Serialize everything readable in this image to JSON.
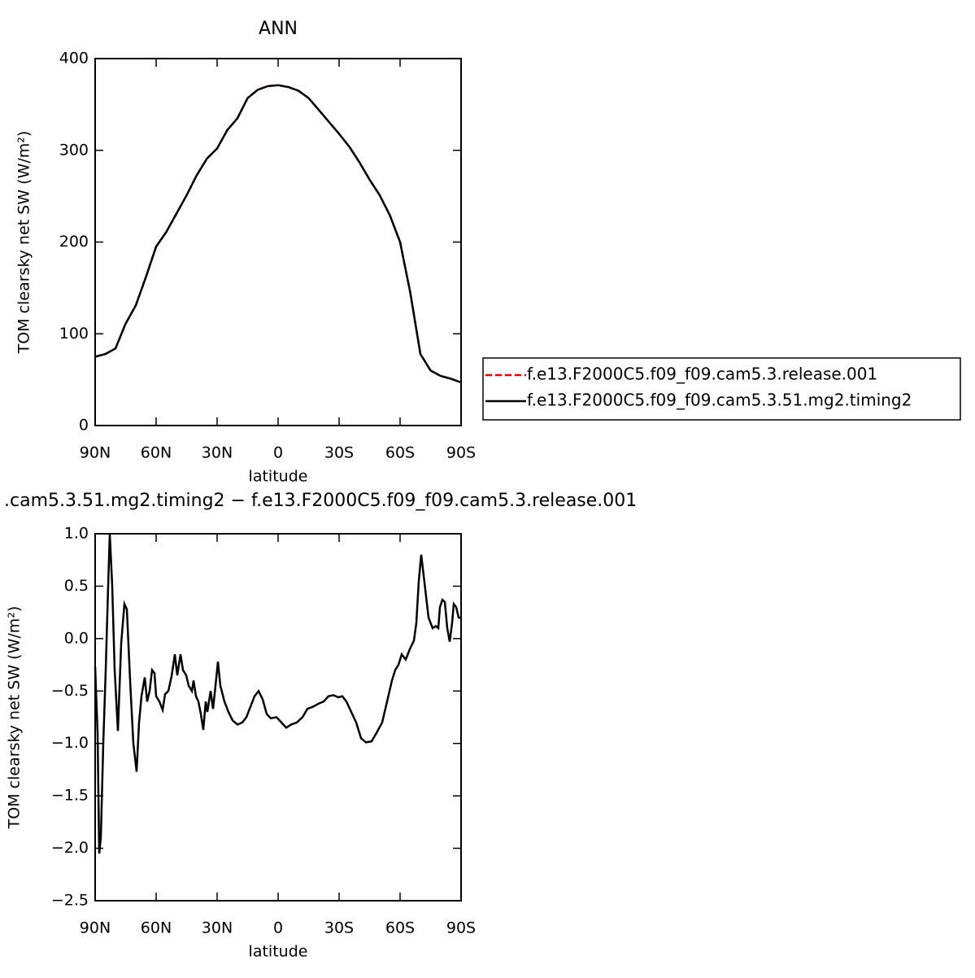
{
  "chart_data": [
    {
      "type": "line",
      "title": "ANN",
      "xlabel": "latitude",
      "ylabel": "TOM clearsky net SW (W/m²)",
      "x": [
        90,
        85,
        80,
        75,
        70,
        65,
        60,
        55,
        50,
        45,
        40,
        35,
        30,
        25,
        20,
        15,
        10,
        5,
        0,
        -5,
        -10,
        -15,
        -20,
        -25,
        -30,
        -35,
        -40,
        -45,
        -50,
        -55,
        -60,
        -65,
        -70,
        -75,
        -80,
        -85,
        -90
      ],
      "series": [
        {
          "name": "f.e13.F2000C5.f09_f09.cam5.3.release.001",
          "color": "#e00000",
          "dashed": true,
          "values": [
            75,
            78,
            84,
            111,
            131,
            162,
            195,
            211,
            231,
            251,
            273,
            291,
            302,
            322,
            335,
            357,
            366,
            370,
            371,
            369,
            365,
            357,
            344,
            331,
            318,
            304,
            287,
            268,
            251,
            229,
            200,
            145,
            78,
            60,
            54,
            51,
            47
          ]
        },
        {
          "name": "f.e13.F2000C5.f09_f09.cam5.3.51.mg2.timing2",
          "color": "#000000",
          "dashed": false,
          "values": [
            75,
            78,
            84,
            111,
            131,
            162,
            195,
            211,
            231,
            251,
            273,
            291,
            302,
            322,
            335,
            357,
            366,
            370,
            371,
            369,
            365,
            357,
            344,
            331,
            318,
            304,
            287,
            268,
            251,
            229,
            200,
            145,
            78,
            60,
            54,
            51,
            47
          ]
        }
      ],
      "xlim": [
        90,
        -90
      ],
      "xticks": [
        {
          "value": 90,
          "label": "90N"
        },
        {
          "value": 60,
          "label": "60N"
        },
        {
          "value": 30,
          "label": "30N"
        },
        0,
        {
          "value": -30,
          "label": "30S"
        },
        {
          "value": -60,
          "label": "60S"
        },
        {
          "value": -90,
          "label": "90S"
        }
      ],
      "ylim": [
        0,
        400
      ],
      "yticks": [
        0,
        100,
        200,
        300,
        400
      ],
      "legend": "right"
    },
    {
      "type": "line",
      "title": ".cam5.3.51.mg2.timing2 − f.e13.F2000C5.f09_f09.cam5.3.release.001",
      "xlabel": "latitude",
      "ylabel": "TOM clearsky net SW (W/m²)",
      "x": [
        90,
        88.8,
        88,
        87.2,
        86,
        84.8,
        83.6,
        82.8,
        81.6,
        80.4,
        78.8,
        77.2,
        75.6,
        74.4,
        72.8,
        71.2,
        69.6,
        68.4,
        67.2,
        65.6,
        64.4,
        63.2,
        62,
        60.8,
        60,
        58.4,
        56.8,
        55.6,
        54,
        52.4,
        50.8,
        49.6,
        48,
        46.8,
        45.2,
        44,
        42.4,
        41.6,
        40.4,
        39.2,
        38,
        36.8,
        35.6,
        34.8,
        33.2,
        32,
        30.8,
        29.6,
        28.4,
        26.4,
        24.4,
        22.4,
        20,
        17.6,
        15.6,
        13.6,
        11.6,
        9.6,
        7.6,
        5.6,
        3.6,
        0.8,
        -1.6,
        -4,
        -6.4,
        -9.2,
        -12,
        -14.4,
        -17.2,
        -20,
        -22.4,
        -24.8,
        -27.2,
        -29.6,
        -31.6,
        -33.6,
        -36,
        -38.4,
        -40.8,
        -43.2,
        -46,
        -48.4,
        -51.2,
        -53.6,
        -56,
        -57.6,
        -59.2,
        -60.8,
        -62.8,
        -64.8,
        -66.8,
        -68,
        -69.2,
        -70.4,
        -71.6,
        -72.8,
        -74,
        -76,
        -77.6,
        -78.8,
        -79.6,
        -80.8,
        -82,
        -83.2,
        -84.4,
        -85.6,
        -86.4,
        -87.6,
        -88.8,
        -90
      ],
      "series": [
        {
          "name": null,
          "color": "#000000",
          "dashed": false,
          "values": [
            -0.27,
            -0.9,
            -2.05,
            -1.9,
            -1.0,
            -0.3,
            0.5,
            1.0,
            0.5,
            -0.3,
            -0.88,
            -0.05,
            0.33,
            0.28,
            -0.4,
            -1.0,
            -1.27,
            -0.8,
            -0.55,
            -0.37,
            -0.6,
            -0.5,
            -0.3,
            -0.33,
            -0.55,
            -0.6,
            -0.68,
            -0.53,
            -0.5,
            -0.36,
            -0.15,
            -0.35,
            -0.15,
            -0.3,
            -0.35,
            -0.45,
            -0.5,
            -0.4,
            -0.55,
            -0.6,
            -0.72,
            -0.87,
            -0.6,
            -0.7,
            -0.5,
            -0.67,
            -0.45,
            -0.22,
            -0.45,
            -0.6,
            -0.7,
            -0.78,
            -0.82,
            -0.8,
            -0.75,
            -0.65,
            -0.55,
            -0.5,
            -0.58,
            -0.72,
            -0.76,
            -0.75,
            -0.8,
            -0.85,
            -0.82,
            -0.8,
            -0.75,
            -0.67,
            -0.65,
            -0.62,
            -0.6,
            -0.55,
            -0.54,
            -0.56,
            -0.55,
            -0.6,
            -0.7,
            -0.8,
            -0.95,
            -0.99,
            -0.98,
            -0.9,
            -0.8,
            -0.6,
            -0.4,
            -0.3,
            -0.25,
            -0.15,
            -0.2,
            -0.1,
            -0.02,
            0.15,
            0.55,
            0.8,
            0.6,
            0.4,
            0.2,
            0.1,
            0.12,
            0.1,
            0.3,
            0.37,
            0.35,
            0.1,
            -0.03,
            0.15,
            0.33,
            0.3,
            0.2,
            0.2
          ]
        }
      ],
      "xlim": [
        90,
        -90
      ],
      "xticks": [
        {
          "value": 90,
          "label": "90N"
        },
        {
          "value": 60,
          "label": "60N"
        },
        {
          "value": 30,
          "label": "30N"
        },
        0,
        {
          "value": -30,
          "label": "30S"
        },
        {
          "value": -60,
          "label": "60S"
        },
        {
          "value": -90,
          "label": "90S"
        }
      ],
      "ylim": [
        -2.5,
        1
      ],
      "yticks": [
        {
          "value": -2.5,
          "label": "−2.5"
        },
        {
          "value": -2,
          "label": "−2.0"
        },
        {
          "value": -1.5,
          "label": "−1.5"
        },
        {
          "value": -1,
          "label": "−1.0"
        },
        {
          "value": -0.5,
          "label": "−0.5"
        },
        {
          "value": 0,
          "label": "0.0"
        },
        0.5,
        {
          "value": 1,
          "label": "1.0"
        }
      ]
    }
  ]
}
